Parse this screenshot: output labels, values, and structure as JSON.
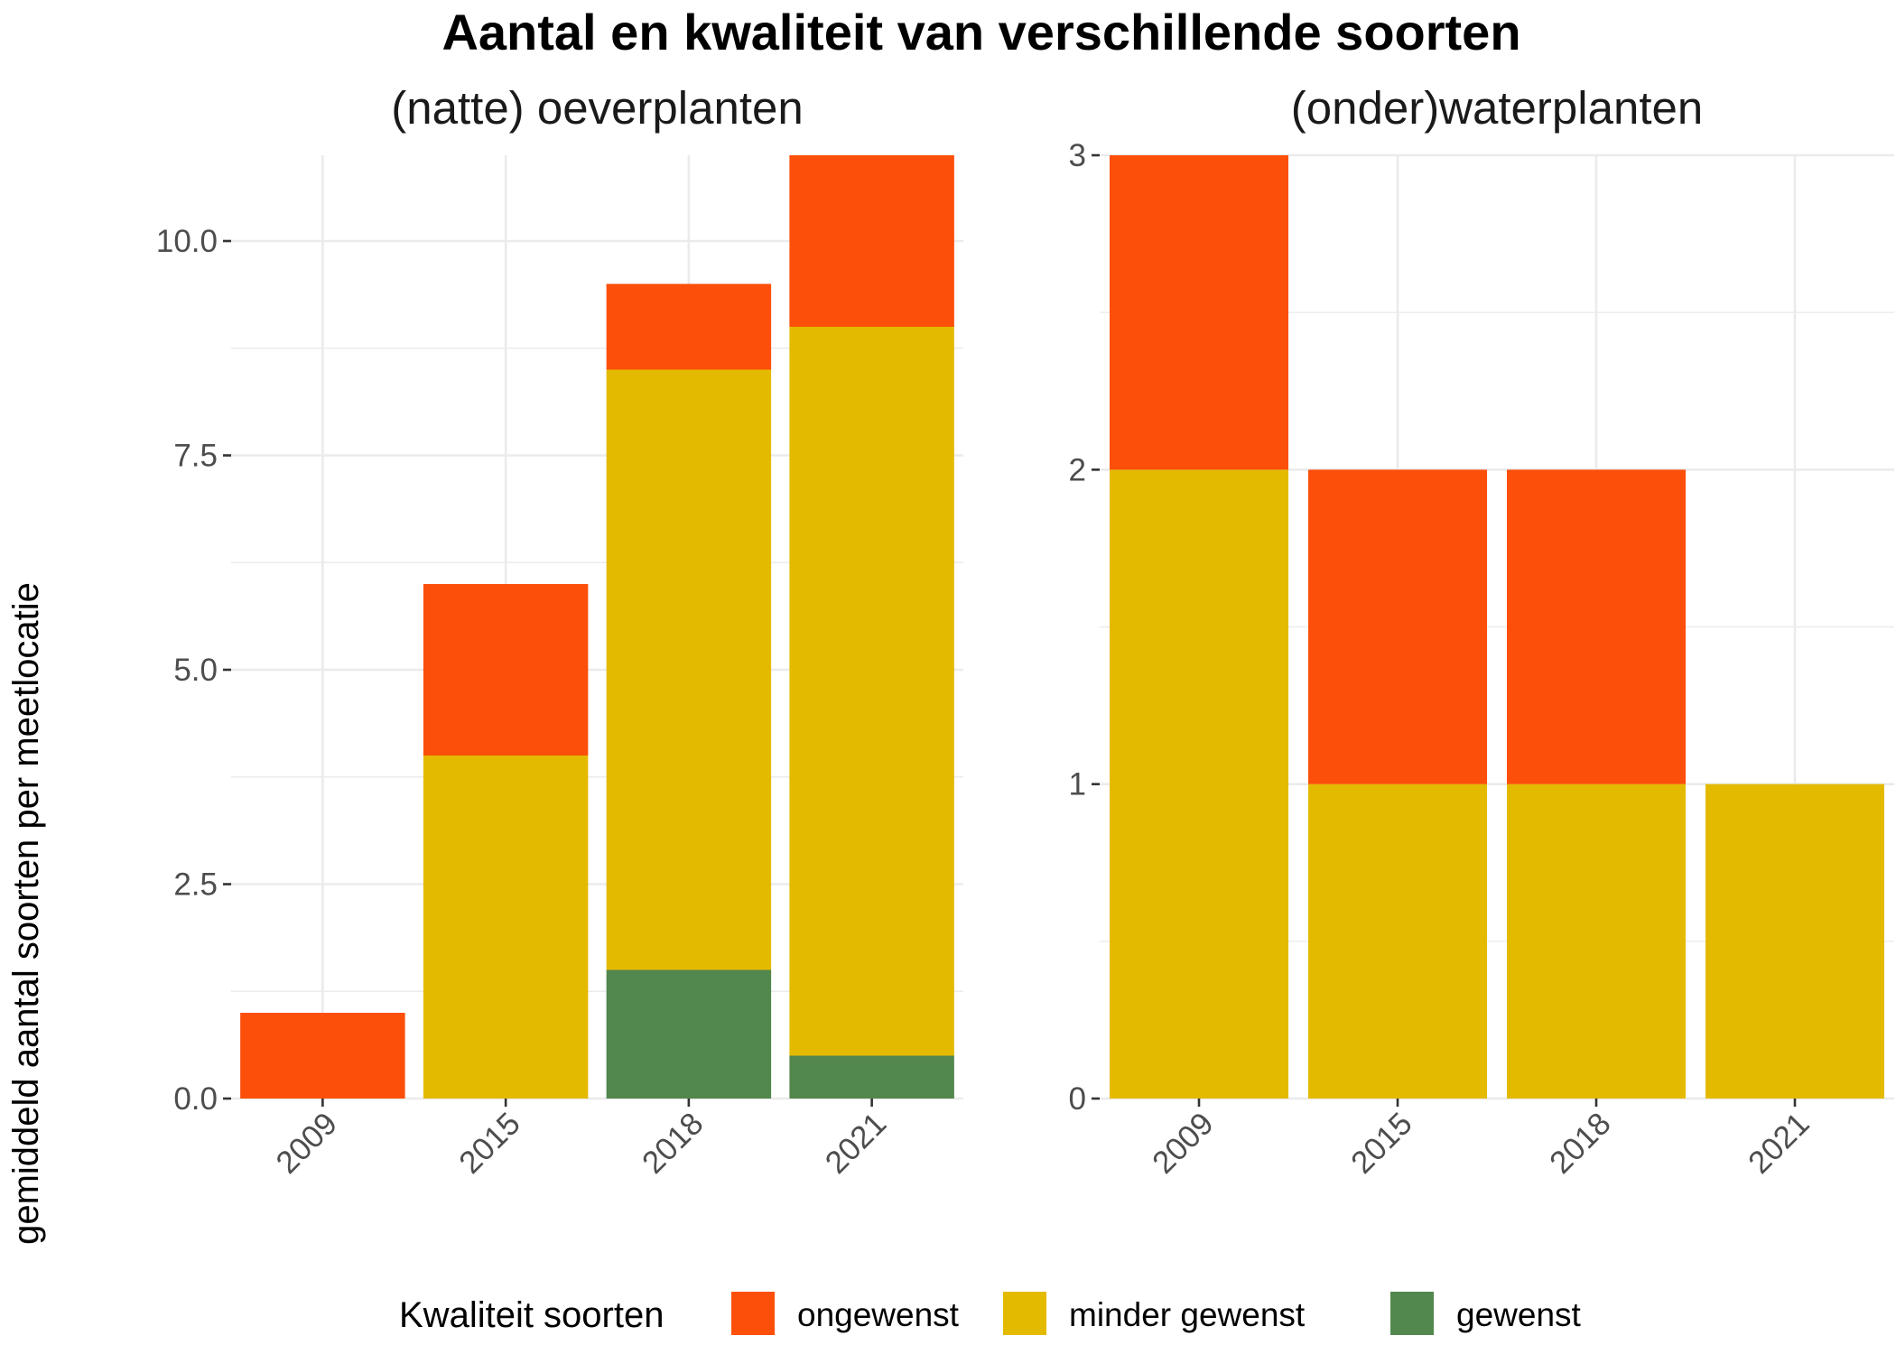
{
  "title": "Aantal en kwaliteit van verschillende soorten",
  "ylabel": "gemiddeld aantal soorten per meetlocatie",
  "legend": {
    "title": "Kwaliteit soorten",
    "position": "bottom",
    "items": [
      {
        "label": "ongewenst",
        "color": "#FC4F0A"
      },
      {
        "label": "minder gewenst",
        "color": "#E4BA00"
      },
      {
        "label": "gewenst",
        "color": "#52874E"
      }
    ]
  },
  "chart_data": [
    {
      "type": "bar",
      "stacked": true,
      "title": "(natte) oeverplanten",
      "categories": [
        "2009",
        "2015",
        "2018",
        "2021"
      ],
      "series": [
        {
          "name": "gewenst",
          "color": "#52874E",
          "values": [
            0,
            0,
            1.5,
            0.5
          ]
        },
        {
          "name": "minder gewenst",
          "color": "#E4BA00",
          "values": [
            0,
            4,
            7,
            8.5
          ]
        },
        {
          "name": "ongewenst",
          "color": "#FC4F0A",
          "values": [
            1,
            2,
            1,
            2
          ]
        }
      ],
      "yticks": [
        "0.0",
        "2.5",
        "5.0",
        "7.5",
        "10.0"
      ],
      "ylim": [
        0,
        11
      ],
      "grid": true
    },
    {
      "type": "bar",
      "stacked": true,
      "title": "(onder)waterplanten",
      "categories": [
        "2009",
        "2015",
        "2018",
        "2021"
      ],
      "series": [
        {
          "name": "gewenst",
          "color": "#52874E",
          "values": [
            0,
            0,
            0,
            0
          ]
        },
        {
          "name": "minder gewenst",
          "color": "#E4BA00",
          "values": [
            2,
            1,
            1,
            1
          ]
        },
        {
          "name": "ongewenst",
          "color": "#FC4F0A",
          "values": [
            1,
            1,
            1,
            0
          ]
        }
      ],
      "yticks": [
        "0",
        "1",
        "2",
        "3"
      ],
      "ylim": [
        0,
        3
      ],
      "grid": true
    }
  ]
}
